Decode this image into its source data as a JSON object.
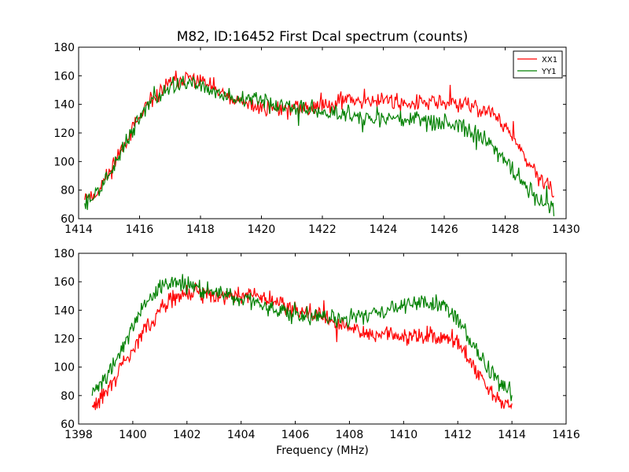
{
  "chart_data": [
    {
      "type": "line",
      "title": "M82, ID:16452 First Dcal spectrum (counts)",
      "xlabel": "",
      "ylabel": "",
      "xlim": [
        1414,
        1430
      ],
      "ylim": [
        60,
        180
      ],
      "xticks": [
        "1414",
        "1416",
        "1418",
        "1420",
        "1422",
        "1424",
        "1426",
        "1428",
        "1430"
      ],
      "yticks": [
        "60",
        "80",
        "100",
        "120",
        "140",
        "160",
        "180"
      ],
      "legend": {
        "placement": "top-right",
        "entries": [
          "XX1",
          "YY1"
        ]
      },
      "series": [
        {
          "name": "XX1",
          "color": "#ff0000",
          "x": [
            1414.2,
            1414.5,
            1414.8,
            1415.0,
            1415.3,
            1415.6,
            1416.0,
            1416.5,
            1417.0,
            1417.5,
            1418.0,
            1418.5,
            1419.0,
            1419.5,
            1420.0,
            1420.5,
            1421.0,
            1421.5,
            1422.0,
            1422.5,
            1423.0,
            1423.5,
            1424.0,
            1424.5,
            1425.0,
            1425.5,
            1426.0,
            1426.5,
            1427.0,
            1427.5,
            1428.0,
            1428.3,
            1428.6,
            1429.0,
            1429.3,
            1429.6
          ],
          "y": [
            77,
            75,
            85,
            92,
            105,
            117,
            130,
            145,
            155,
            158,
            157,
            150,
            143,
            140,
            138,
            137,
            137,
            137,
            140,
            143,
            143,
            143,
            143,
            142,
            141,
            141,
            141,
            140,
            138,
            135,
            125,
            115,
            103,
            92,
            85,
            78
          ]
        },
        {
          "name": "YY1",
          "color": "#008000",
          "x": [
            1414.2,
            1414.5,
            1414.8,
            1415.0,
            1415.3,
            1415.6,
            1416.0,
            1416.5,
            1417.0,
            1417.5,
            1418.0,
            1418.5,
            1419.0,
            1419.5,
            1420.0,
            1420.5,
            1421.0,
            1421.5,
            1422.0,
            1422.5,
            1423.0,
            1423.5,
            1424.0,
            1424.5,
            1425.0,
            1425.5,
            1426.0,
            1426.5,
            1427.0,
            1427.5,
            1428.0,
            1428.3,
            1428.6,
            1429.0,
            1429.3,
            1429.6
          ],
          "y": [
            72,
            76,
            83,
            90,
            103,
            116,
            130,
            145,
            152,
            155,
            153,
            148,
            145,
            143,
            142,
            140,
            137,
            136,
            135,
            134,
            133,
            132,
            131,
            130,
            129,
            128,
            127,
            125,
            120,
            112,
            100,
            92,
            85,
            76,
            70,
            68
          ]
        }
      ]
    },
    {
      "type": "line",
      "title": "",
      "xlabel": "Frequency (MHz)",
      "ylabel": "",
      "xlim": [
        1398,
        1416
      ],
      "ylim": [
        60,
        180
      ],
      "xticks": [
        "1398",
        "1400",
        "1402",
        "1404",
        "1406",
        "1408",
        "1410",
        "1412",
        "1414",
        "1416"
      ],
      "yticks": [
        "60",
        "80",
        "100",
        "120",
        "140",
        "160",
        "180"
      ],
      "series": [
        {
          "name": "XX1",
          "color": "#ff0000",
          "x": [
            1398.5,
            1398.8,
            1399.2,
            1399.6,
            1400.0,
            1400.5,
            1401.0,
            1401.5,
            1402.0,
            1402.5,
            1403.0,
            1403.5,
            1404.0,
            1404.5,
            1405.0,
            1405.5,
            1406.0,
            1406.5,
            1407.0,
            1407.5,
            1408.0,
            1408.5,
            1409.0,
            1409.5,
            1410.0,
            1410.5,
            1411.0,
            1411.5,
            1412.0,
            1412.3,
            1412.6,
            1413.0,
            1413.3,
            1413.6,
            1414.0
          ],
          "y": [
            70,
            78,
            88,
            100,
            112,
            128,
            140,
            148,
            152,
            152,
            151,
            151,
            151,
            150,
            148,
            145,
            142,
            139,
            135,
            131,
            127,
            124,
            123,
            122,
            122,
            122,
            122,
            121,
            118,
            110,
            100,
            88,
            80,
            75,
            72
          ]
        },
        {
          "name": "YY1",
          "color": "#008000",
          "x": [
            1398.5,
            1398.8,
            1399.2,
            1399.6,
            1400.0,
            1400.5,
            1401.0,
            1401.5,
            1402.0,
            1402.5,
            1403.0,
            1403.5,
            1404.0,
            1404.5,
            1405.0,
            1405.5,
            1406.0,
            1406.5,
            1407.0,
            1407.5,
            1408.0,
            1408.5,
            1409.0,
            1409.5,
            1410.0,
            1410.5,
            1411.0,
            1411.5,
            1412.0,
            1412.3,
            1412.6,
            1413.0,
            1413.3,
            1413.6,
            1414.0
          ],
          "y": [
            83,
            90,
            100,
            113,
            128,
            145,
            155,
            160,
            157,
            155,
            153,
            151,
            148,
            145,
            142,
            140,
            138,
            136,
            135,
            134,
            134,
            136,
            139,
            141,
            143,
            145,
            146,
            143,
            135,
            125,
            115,
            103,
            95,
            88,
            82
          ]
        }
      ]
    }
  ]
}
